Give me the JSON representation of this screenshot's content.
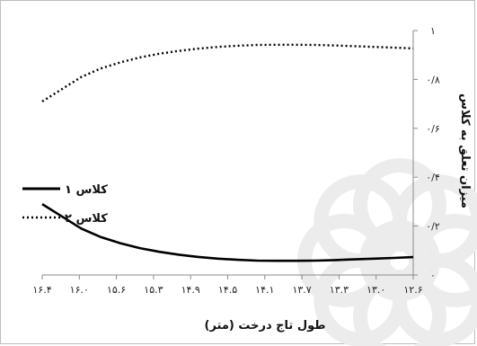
{
  "chart_data": {
    "type": "line",
    "xlabel": "طول تاج درخت (متر)",
    "ylabel": "میزان تعلق به کلاس",
    "x_tick_labels": [
      "۱۶.۴",
      "۱۶.۰",
      "۱۵.۶",
      "۱۵.۳",
      "۱۴.۹",
      "۱۴.۵",
      "۱۴.۱",
      "۱۳.۷",
      "۱۳.۳",
      "۱۳.۰",
      "۱۲.۶"
    ],
    "y_tick_labels": [
      "۰",
      "۰/۲",
      "۰/۴",
      "۰/۶",
      "۰/۸",
      "۱"
    ],
    "y_ticks": [
      0,
      0.2,
      0.4,
      0.6,
      0.8,
      1
    ],
    "xlim": [
      16.4,
      12.6
    ],
    "ylim": [
      0,
      1
    ],
    "x_reversed": true,
    "y_axis_position": "right",
    "grid": false,
    "legend_position": "left",
    "x": [
      16.4,
      16.2,
      16.0,
      15.8,
      15.6,
      15.4,
      15.2,
      15.0,
      14.8,
      14.6,
      14.4,
      14.2,
      14.0,
      13.8,
      13.6,
      13.4,
      13.2,
      13.0,
      12.8,
      12.6
    ],
    "series": [
      {
        "name": "کلاس ۱",
        "style": "solid",
        "color": "#000000",
        "values": [
          0.29,
          0.24,
          0.19,
          0.155,
          0.13,
          0.11,
          0.095,
          0.083,
          0.074,
          0.067,
          0.062,
          0.059,
          0.058,
          0.058,
          0.059,
          0.061,
          0.064,
          0.067,
          0.07,
          0.073
        ]
      },
      {
        "name": "کلاس ۲",
        "style": "dotted",
        "color": "#000000",
        "values": [
          0.71,
          0.76,
          0.81,
          0.845,
          0.87,
          0.89,
          0.905,
          0.917,
          0.926,
          0.933,
          0.938,
          0.941,
          0.942,
          0.942,
          0.941,
          0.939,
          0.936,
          0.933,
          0.93,
          0.927
        ]
      }
    ]
  },
  "watermark": {
    "color": "#ececec"
  }
}
